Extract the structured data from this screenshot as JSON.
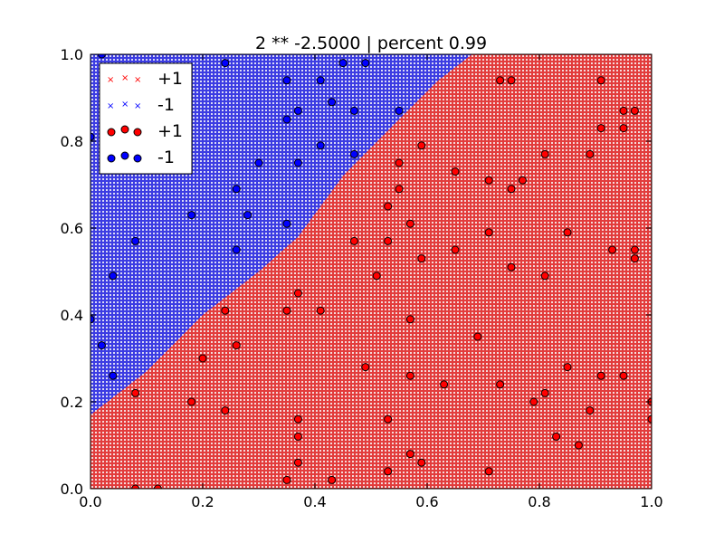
{
  "chart_data": {
    "type": "scatter",
    "title": "2 ** -2.5000 | percent 0.99",
    "xlabel": "",
    "ylabel": "",
    "xlim": [
      0.0,
      1.0
    ],
    "ylim": [
      0.0,
      1.0
    ],
    "xticks": [
      "0.0",
      "0.2",
      "0.4",
      "0.6",
      "0.8",
      "1.0"
    ],
    "yticks": [
      "0.0",
      "0.2",
      "0.4",
      "0.6",
      "0.8",
      "1.0"
    ],
    "grid": false,
    "legend_position": "top-left",
    "colors": {
      "pos": "#ff0000",
      "neg": "#0000ff",
      "pos_fill": "#e8e8e8",
      "neg_fill": "#e8e8ff"
    },
    "legend": [
      {
        "label": "+1",
        "marker": "x",
        "color": "#ff0000"
      },
      {
        "label": "-1",
        "marker": "x",
        "color": "#0000ff"
      },
      {
        "label": "+1",
        "marker": "o",
        "color": "#ff0000"
      },
      {
        "label": "-1",
        "marker": "o",
        "color": "#0000ff"
      }
    ],
    "decision_boundary": [
      [
        0.0,
        0.17
      ],
      [
        0.1,
        0.27
      ],
      [
        0.2,
        0.4
      ],
      [
        0.3,
        0.5
      ],
      [
        0.37,
        0.58
      ],
      [
        0.45,
        0.72
      ],
      [
        0.55,
        0.85
      ],
      [
        0.62,
        0.94
      ],
      [
        0.68,
        1.0
      ]
    ],
    "series": [
      {
        "name": "+1",
        "color": "#ff0000",
        "points": [
          [
            0.08,
            0.0
          ],
          [
            0.12,
            0.0
          ],
          [
            0.08,
            0.22
          ],
          [
            0.18,
            0.2
          ],
          [
            0.2,
            0.3
          ],
          [
            0.24,
            0.41
          ],
          [
            0.24,
            0.18
          ],
          [
            0.26,
            0.33
          ],
          [
            0.35,
            0.41
          ],
          [
            0.35,
            0.02
          ],
          [
            0.37,
            0.45
          ],
          [
            0.37,
            0.16
          ],
          [
            0.37,
            0.12
          ],
          [
            0.37,
            0.06
          ],
          [
            0.41,
            0.41
          ],
          [
            0.43,
            0.02
          ],
          [
            0.47,
            0.57
          ],
          [
            0.49,
            0.28
          ],
          [
            0.51,
            0.49
          ],
          [
            0.53,
            0.65
          ],
          [
            0.53,
            0.57
          ],
          [
            0.53,
            0.16
          ],
          [
            0.53,
            0.04
          ],
          [
            0.55,
            0.75
          ],
          [
            0.55,
            0.69
          ],
          [
            0.57,
            0.61
          ],
          [
            0.57,
            0.39
          ],
          [
            0.57,
            0.26
          ],
          [
            0.57,
            0.08
          ],
          [
            0.59,
            0.79
          ],
          [
            0.59,
            0.53
          ],
          [
            0.59,
            0.06
          ],
          [
            0.63,
            0.24
          ],
          [
            0.65,
            0.73
          ],
          [
            0.65,
            0.55
          ],
          [
            0.69,
            0.35
          ],
          [
            0.71,
            0.71
          ],
          [
            0.71,
            0.59
          ],
          [
            0.71,
            0.04
          ],
          [
            0.73,
            0.94
          ],
          [
            0.73,
            0.24
          ],
          [
            0.75,
            0.94
          ],
          [
            0.75,
            0.69
          ],
          [
            0.75,
            0.51
          ],
          [
            0.77,
            0.71
          ],
          [
            0.79,
            0.2
          ],
          [
            0.81,
            0.77
          ],
          [
            0.81,
            0.49
          ],
          [
            0.81,
            0.22
          ],
          [
            0.83,
            0.12
          ],
          [
            0.85,
            0.59
          ],
          [
            0.85,
            0.28
          ],
          [
            0.87,
            0.1
          ],
          [
            0.89,
            0.77
          ],
          [
            0.89,
            0.18
          ],
          [
            0.91,
            0.94
          ],
          [
            0.91,
            0.83
          ],
          [
            0.91,
            0.26
          ],
          [
            0.93,
            0.55
          ],
          [
            0.95,
            0.87
          ],
          [
            0.95,
            0.83
          ],
          [
            0.95,
            0.26
          ],
          [
            0.97,
            0.87
          ],
          [
            0.97,
            0.55
          ],
          [
            0.97,
            0.53
          ],
          [
            1.0,
            0.2
          ],
          [
            1.0,
            0.16
          ]
        ]
      },
      {
        "name": "-1",
        "color": "#0000ff",
        "points": [
          [
            0.0,
            0.81
          ],
          [
            0.0,
            0.39
          ],
          [
            0.02,
            1.0
          ],
          [
            0.02,
            0.33
          ],
          [
            0.04,
            0.49
          ],
          [
            0.04,
            0.26
          ],
          [
            0.08,
            0.57
          ],
          [
            0.18,
            0.63
          ],
          [
            0.24,
            0.98
          ],
          [
            0.26,
            0.69
          ],
          [
            0.26,
            0.55
          ],
          [
            0.28,
            0.63
          ],
          [
            0.3,
            0.75
          ],
          [
            0.35,
            0.94
          ],
          [
            0.35,
            0.85
          ],
          [
            0.35,
            0.61
          ],
          [
            0.37,
            0.87
          ],
          [
            0.37,
            0.75
          ],
          [
            0.41,
            0.94
          ],
          [
            0.41,
            0.79
          ],
          [
            0.43,
            0.89
          ],
          [
            0.45,
            0.98
          ],
          [
            0.47,
            0.87
          ],
          [
            0.47,
            0.77
          ],
          [
            0.49,
            0.98
          ],
          [
            0.55,
            0.87
          ]
        ]
      }
    ]
  }
}
